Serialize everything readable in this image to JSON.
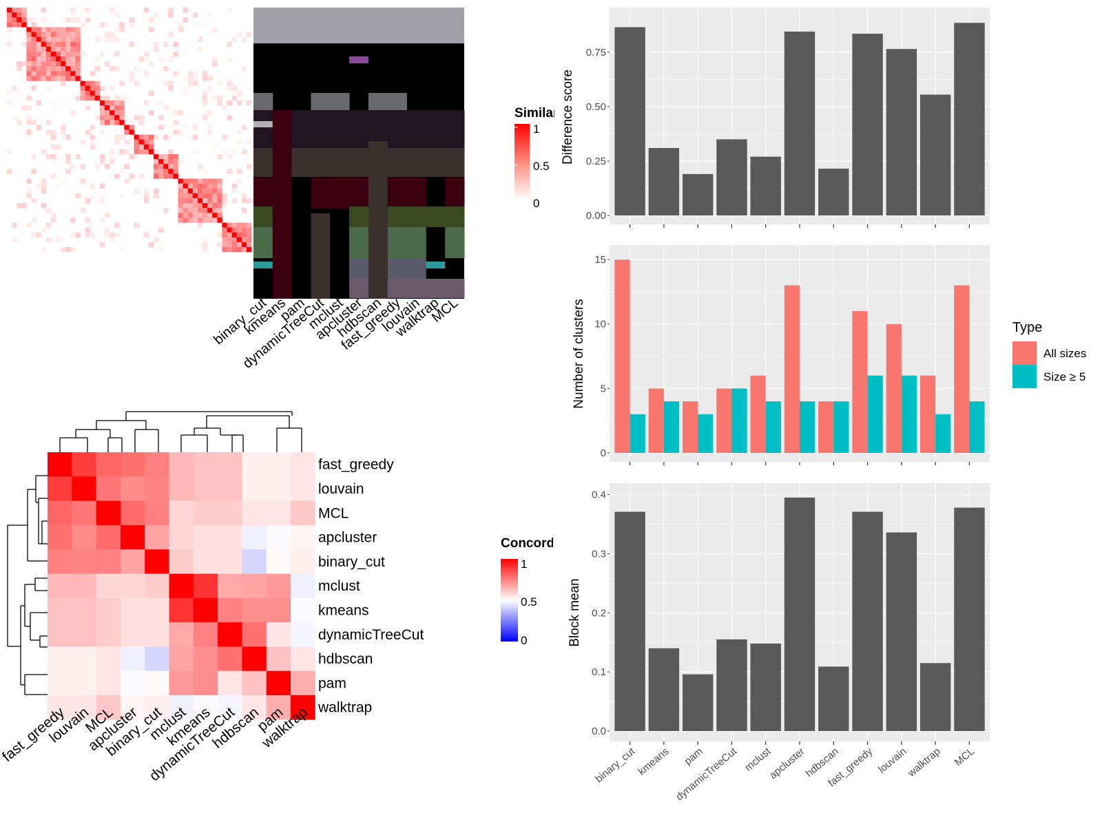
{
  "colors": {
    "panel_bg": "#ebebeb",
    "grid": "#ffffff",
    "bar": "#595959",
    "all_sizes": "#f8766d",
    "size5": "#00bfc4",
    "heat_high": "#ff0000",
    "heat_low": "#0000ff",
    "dendro": "#000000"
  },
  "methods": [
    "binary_cut",
    "kmeans",
    "pam",
    "dynamicTreeCut",
    "mclust",
    "apcluster",
    "hdbscan",
    "fast_greedy",
    "louvain",
    "walktrap",
    "MCL"
  ],
  "similarity_heatmap": {
    "legend_title": "Similarity",
    "legend_ticks": [
      "1",
      "0.5",
      "0"
    ],
    "method_labels": [
      "binary_cut",
      "kmeans",
      "pam",
      "dynamicTreeCut",
      "mclust",
      "apcluster",
      "hdbscan",
      "fast_greedy",
      "louvain",
      "walktrap",
      "MCL"
    ]
  },
  "concordance_heatmap": {
    "legend_title": "Concordance",
    "legend_ticks": [
      "1",
      "0.5",
      "0"
    ],
    "order": [
      "fast_greedy",
      "louvain",
      "MCL",
      "apcluster",
      "binary_cut",
      "mclust",
      "kmeans",
      "dynamicTreeCut",
      "hdbscan",
      "pam",
      "walktrap"
    ],
    "matrix": [
      [
        1.0,
        0.88,
        0.8,
        0.78,
        0.75,
        0.64,
        0.62,
        0.62,
        0.53,
        0.53,
        0.55
      ],
      [
        0.88,
        1.0,
        0.77,
        0.73,
        0.74,
        0.64,
        0.62,
        0.62,
        0.53,
        0.53,
        0.55
      ],
      [
        0.8,
        0.77,
        1.0,
        0.79,
        0.75,
        0.58,
        0.6,
        0.6,
        0.55,
        0.55,
        0.61
      ],
      [
        0.78,
        0.73,
        0.79,
        1.0,
        0.68,
        0.58,
        0.56,
        0.56,
        0.47,
        0.49,
        0.52
      ],
      [
        0.75,
        0.74,
        0.75,
        0.68,
        1.0,
        0.6,
        0.56,
        0.56,
        0.42,
        0.51,
        0.53
      ],
      [
        0.64,
        0.64,
        0.58,
        0.58,
        0.6,
        1.0,
        0.9,
        0.67,
        0.68,
        0.7,
        0.47
      ],
      [
        0.62,
        0.62,
        0.6,
        0.56,
        0.56,
        0.9,
        1.0,
        0.75,
        0.72,
        0.72,
        0.49
      ],
      [
        0.62,
        0.62,
        0.6,
        0.56,
        0.56,
        0.67,
        0.75,
        1.0,
        0.78,
        0.55,
        0.48
      ],
      [
        0.53,
        0.53,
        0.55,
        0.47,
        0.42,
        0.68,
        0.72,
        0.78,
        1.0,
        0.62,
        0.55
      ],
      [
        0.53,
        0.53,
        0.55,
        0.49,
        0.51,
        0.7,
        0.72,
        0.55,
        0.62,
        1.0,
        0.66
      ],
      [
        0.55,
        0.55,
        0.61,
        0.52,
        0.53,
        0.47,
        0.49,
        0.48,
        0.55,
        0.66,
        1.0
      ]
    ]
  },
  "chart_data": [
    {
      "type": "bar",
      "categories": [
        "binary_cut",
        "kmeans",
        "pam",
        "dynamicTreeCut",
        "mclust",
        "apcluster",
        "hdbscan",
        "fast_greedy",
        "louvain",
        "walktrap",
        "MCL"
      ],
      "values": [
        0.865,
        0.31,
        0.19,
        0.35,
        0.27,
        0.845,
        0.215,
        0.835,
        0.765,
        0.555,
        0.885
      ],
      "ylabel": "Difference score",
      "ylim": [
        0,
        0.93
      ],
      "yticks": [
        "0.00",
        "0.25",
        "0.50",
        "0.75"
      ],
      "grid": true
    },
    {
      "type": "bar",
      "categories": [
        "binary_cut",
        "kmeans",
        "pam",
        "dynamicTreeCut",
        "mclust",
        "apcluster",
        "hdbscan",
        "fast_greedy",
        "louvain",
        "walktrap",
        "MCL"
      ],
      "series": [
        {
          "name": "All sizes",
          "values": [
            15,
            5,
            4,
            5,
            6,
            13,
            4,
            11,
            10,
            6,
            13
          ]
        },
        {
          "name": "Size ≥ 5",
          "values": [
            3,
            4,
            3,
            5,
            4,
            4,
            4,
            6,
            6,
            3,
            4
          ]
        }
      ],
      "ylabel": "Number of clusters",
      "ylim": [
        0,
        15.7
      ],
      "yticks": [
        "0",
        "5",
        "10",
        "15"
      ],
      "legend_title": "Type",
      "legend_position": "right",
      "grid": true
    },
    {
      "type": "bar",
      "categories": [
        "binary_cut",
        "kmeans",
        "pam",
        "dynamicTreeCut",
        "mclust",
        "apcluster",
        "hdbscan",
        "fast_greedy",
        "louvain",
        "walktrap",
        "MCL"
      ],
      "values": [
        0.371,
        0.14,
        0.096,
        0.155,
        0.148,
        0.395,
        0.109,
        0.371,
        0.336,
        0.115,
        0.378
      ],
      "ylabel": "Block mean",
      "ylim": [
        0,
        0.41
      ],
      "yticks": [
        "0.0",
        "0.1",
        "0.2",
        "0.3",
        "0.4"
      ],
      "grid": true
    }
  ]
}
